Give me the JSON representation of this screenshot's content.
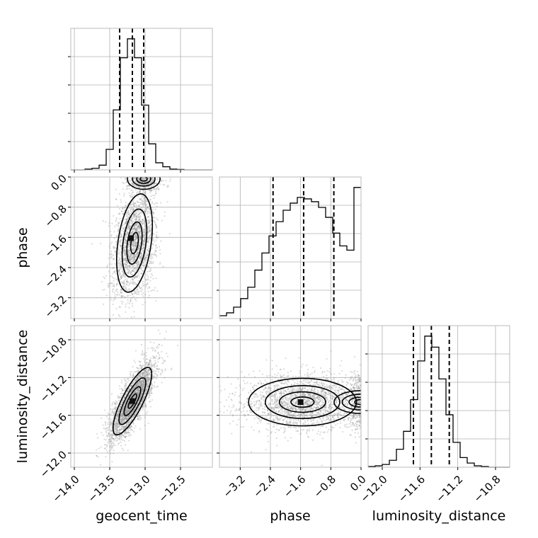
{
  "chart_data": {
    "type": "corner",
    "parameters": [
      "geocent_time",
      "phase",
      "luminosity_distance"
    ],
    "ranges": {
      "geocent_time": [
        -14.05,
        -12.05
      ],
      "phase": [
        -3.75,
        0.0
      ],
      "luminosity_distance": [
        -12.15,
        -10.65
      ]
    },
    "ticks": {
      "geocent_time": [
        -14.0,
        -13.5,
        -13.0,
        -12.5
      ],
      "phase": [
        -3.2,
        -2.4,
        -1.6,
        -0.8,
        0.0
      ],
      "luminosity_distance": [
        -12.0,
        -11.6,
        -11.2,
        -10.8
      ]
    },
    "tick_labels": {
      "geocent_time": [
        "−14.0",
        "−13.5",
        "−13.0",
        "−12.5"
      ],
      "phase": [
        "−3.2",
        "−2.4",
        "−1.6",
        "−0.8",
        "0.0"
      ],
      "luminosity_distance": [
        "−12.0",
        "−11.6",
        "−11.2",
        "−10.8"
      ]
    },
    "axis_labels": {
      "geocent_time": "geocent_time",
      "phase": "phase",
      "luminosity_distance": "luminosity_distance"
    },
    "quantiles": {
      "geocent_time": [
        -13.36,
        -13.18,
        -13.02
      ],
      "phase": [
        -2.33,
        -1.52,
        -0.72
      ],
      "luminosity_distance": [
        -11.67,
        -11.48,
        -11.29
      ]
    },
    "histograms": {
      "geocent_time": {
        "edges": [
          -14.05,
          -13.95,
          -13.85,
          -13.75,
          -13.65,
          -13.55,
          -13.45,
          -13.35,
          -13.25,
          -13.15,
          -13.05,
          -12.95,
          -12.85,
          -12.75,
          -12.65,
          -12.55,
          -12.45,
          -12.35,
          -12.25,
          -12.15,
          -12.05
        ],
        "counts": [
          0,
          0,
          1,
          2,
          6,
          26,
          76,
          142,
          166,
          142,
          82,
          33,
          9,
          4,
          1,
          0.5,
          0,
          0,
          0,
          0
        ]
      },
      "phase": {
        "edges": [
          -3.75,
          -3.5625,
          -3.375,
          -3.1875,
          -3.0,
          -2.8125,
          -2.625,
          -2.4375,
          -2.25,
          -2.0625,
          -1.875,
          -1.6875,
          -1.5,
          -1.3125,
          -1.125,
          -0.9375,
          -0.75,
          -0.5625,
          -0.375,
          -0.1875,
          0.0
        ],
        "counts": [
          2,
          4,
          8,
          14,
          22,
          34,
          46,
          58,
          68,
          76,
          81,
          85,
          84,
          82,
          78,
          71,
          60,
          51,
          48,
          92
        ]
      },
      "luminosity_distance": {
        "edges": [
          -12.15,
          -12.075,
          -12.0,
          -11.925,
          -11.85,
          -11.775,
          -11.7,
          -11.625,
          -11.55,
          -11.475,
          -11.4,
          -11.325,
          -11.25,
          -11.175,
          -11.1,
          -11.025,
          -10.95,
          -10.875,
          -10.8,
          -10.725,
          -10.65
        ],
        "counts": [
          1,
          2,
          4,
          10,
          26,
          52,
          98,
          154,
          190,
          174,
          128,
          76,
          36,
          14,
          6,
          2,
          1,
          0,
          0,
          0
        ]
      }
    },
    "pairs": [
      {
        "x": "geocent_time",
        "y": "phase",
        "modes": [
          {
            "x_mean": -13.15,
            "y_mean": -1.75,
            "x_sd": 0.12,
            "y_sd": 0.62,
            "rho": 0.35,
            "weight": 0.78
          },
          {
            "x_mean": -13.02,
            "y_mean": -0.05,
            "x_sd": 0.1,
            "y_sd": 0.12,
            "rho": 0.0,
            "weight": 0.22
          }
        ],
        "peak": [
          -13.2,
          -1.62
        ]
      },
      {
        "x": "geocent_time",
        "y": "luminosity_distance",
        "modes": [
          {
            "x_mean": -13.18,
            "y_mean": -11.45,
            "x_sd": 0.13,
            "y_sd": 0.17,
            "rho": 0.8,
            "weight": 1.0
          }
        ],
        "peak": [
          -13.18,
          -11.45
        ]
      },
      {
        "x": "phase",
        "y": "luminosity_distance",
        "modes": [
          {
            "x_mean": -1.55,
            "y_mean": -11.46,
            "x_sd": 0.68,
            "y_sd": 0.12,
            "rho": 0.0,
            "weight": 0.8
          },
          {
            "x_mean": -0.02,
            "y_mean": -11.46,
            "x_sd": 0.13,
            "y_sd": 0.12,
            "rho": 0.0,
            "weight": 0.2
          }
        ],
        "peak": [
          -1.6,
          -11.46
        ]
      }
    ]
  }
}
